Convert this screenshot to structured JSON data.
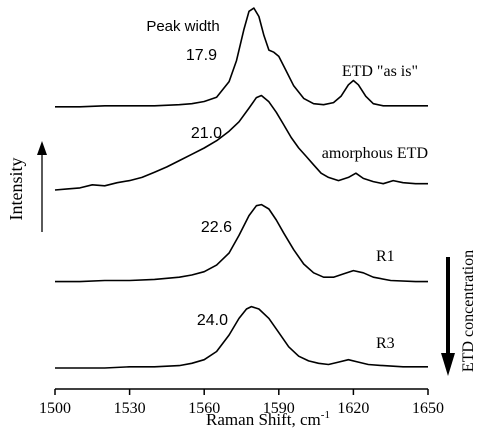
{
  "chart_data": {
    "type": "line",
    "xlabel": "Raman Shift, cm",
    "xlabel_superscript": "-1",
    "ylabel": "Intensity",
    "x_ticks": [
      1500,
      1530,
      1560,
      1590,
      1620,
      1650
    ],
    "xlim": [
      1500,
      1650
    ],
    "right_label": "ETD concentration",
    "peak_width_header": "Peak width",
    "grid": false,
    "series": [
      {
        "name": "ETD \"as is\"",
        "peak_width": "17.9",
        "points": [
          [
            1500,
            0.04
          ],
          [
            1510,
            0.04
          ],
          [
            1520,
            0.05
          ],
          [
            1530,
            0.05
          ],
          [
            1540,
            0.05
          ],
          [
            1550,
            0.06
          ],
          [
            1555,
            0.07
          ],
          [
            1560,
            0.09
          ],
          [
            1565,
            0.13
          ],
          [
            1570,
            0.28
          ],
          [
            1573,
            0.48
          ],
          [
            1576,
            0.78
          ],
          [
            1578,
            0.95
          ],
          [
            1580,
            0.98
          ],
          [
            1582,
            0.9
          ],
          [
            1584,
            0.72
          ],
          [
            1586,
            0.58
          ],
          [
            1588,
            0.56
          ],
          [
            1590,
            0.52
          ],
          [
            1593,
            0.38
          ],
          [
            1596,
            0.24
          ],
          [
            1600,
            0.12
          ],
          [
            1604,
            0.07
          ],
          [
            1608,
            0.06
          ],
          [
            1612,
            0.08
          ],
          [
            1615,
            0.14
          ],
          [
            1618,
            0.25
          ],
          [
            1620,
            0.29
          ],
          [
            1622,
            0.25
          ],
          [
            1625,
            0.14
          ],
          [
            1628,
            0.07
          ],
          [
            1632,
            0.05
          ],
          [
            1640,
            0.05
          ],
          [
            1650,
            0.05
          ]
        ]
      },
      {
        "name": "amorphous ETD",
        "peak_width": "21.0",
        "points": [
          [
            1500,
            0.0
          ],
          [
            1505,
            0.01
          ],
          [
            1510,
            0.02
          ],
          [
            1515,
            0.05
          ],
          [
            1520,
            0.04
          ],
          [
            1525,
            0.07
          ],
          [
            1530,
            0.09
          ],
          [
            1535,
            0.12
          ],
          [
            1540,
            0.17
          ],
          [
            1545,
            0.22
          ],
          [
            1550,
            0.28
          ],
          [
            1555,
            0.34
          ],
          [
            1560,
            0.4
          ],
          [
            1565,
            0.47
          ],
          [
            1570,
            0.56
          ],
          [
            1574,
            0.65
          ],
          [
            1578,
            0.78
          ],
          [
            1581,
            0.88
          ],
          [
            1583,
            0.9
          ],
          [
            1586,
            0.84
          ],
          [
            1589,
            0.74
          ],
          [
            1592,
            0.62
          ],
          [
            1595,
            0.5
          ],
          [
            1598,
            0.4
          ],
          [
            1601,
            0.32
          ],
          [
            1604,
            0.24
          ],
          [
            1607,
            0.16
          ],
          [
            1610,
            0.12
          ],
          [
            1614,
            0.09
          ],
          [
            1618,
            0.12
          ],
          [
            1621,
            0.16
          ],
          [
            1624,
            0.11
          ],
          [
            1628,
            0.08
          ],
          [
            1632,
            0.06
          ],
          [
            1636,
            0.09
          ],
          [
            1640,
            0.07
          ],
          [
            1645,
            0.06
          ],
          [
            1650,
            0.06
          ]
        ]
      },
      {
        "name": "R1",
        "peak_width": "22.6",
        "points": [
          [
            1500,
            0.04
          ],
          [
            1510,
            0.04
          ],
          [
            1520,
            0.05
          ],
          [
            1530,
            0.05
          ],
          [
            1540,
            0.06
          ],
          [
            1550,
            0.08
          ],
          [
            1555,
            0.1
          ],
          [
            1560,
            0.13
          ],
          [
            1565,
            0.19
          ],
          [
            1570,
            0.3
          ],
          [
            1574,
            0.46
          ],
          [
            1578,
            0.64
          ],
          [
            1581,
            0.73
          ],
          [
            1583,
            0.74
          ],
          [
            1586,
            0.7
          ],
          [
            1589,
            0.6
          ],
          [
            1592,
            0.48
          ],
          [
            1596,
            0.33
          ],
          [
            1600,
            0.2
          ],
          [
            1604,
            0.12
          ],
          [
            1608,
            0.08
          ],
          [
            1612,
            0.08
          ],
          [
            1616,
            0.11
          ],
          [
            1620,
            0.14
          ],
          [
            1624,
            0.12
          ],
          [
            1628,
            0.08
          ],
          [
            1635,
            0.05
          ],
          [
            1645,
            0.04
          ],
          [
            1650,
            0.04
          ]
        ]
      },
      {
        "name": "R3",
        "peak_width": "24.0",
        "points": [
          [
            1500,
            0.0
          ],
          [
            1510,
            0.0
          ],
          [
            1520,
            0.0
          ],
          [
            1530,
            0.01
          ],
          [
            1540,
            0.01
          ],
          [
            1550,
            0.02
          ],
          [
            1555,
            0.04
          ],
          [
            1560,
            0.07
          ],
          [
            1565,
            0.14
          ],
          [
            1570,
            0.28
          ],
          [
            1574,
            0.42
          ],
          [
            1577,
            0.5
          ],
          [
            1579,
            0.52
          ],
          [
            1582,
            0.5
          ],
          [
            1586,
            0.42
          ],
          [
            1590,
            0.3
          ],
          [
            1594,
            0.18
          ],
          [
            1598,
            0.1
          ],
          [
            1602,
            0.06
          ],
          [
            1606,
            0.04
          ],
          [
            1610,
            0.03
          ],
          [
            1614,
            0.05
          ],
          [
            1618,
            0.07
          ],
          [
            1622,
            0.05
          ],
          [
            1626,
            0.03
          ],
          [
            1632,
            0.02
          ],
          [
            1640,
            0.01
          ],
          [
            1650,
            0.01
          ]
        ]
      }
    ]
  }
}
